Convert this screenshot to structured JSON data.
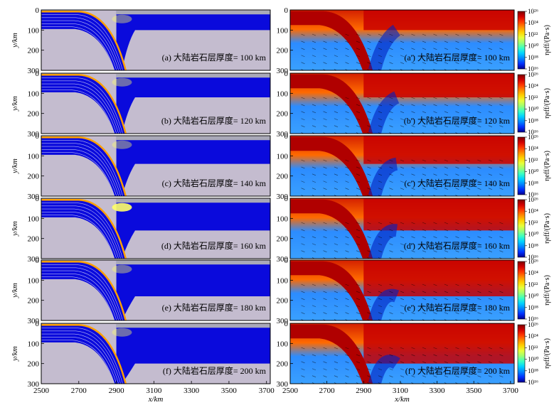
{
  "figure": {
    "colors": {
      "mantle": "#0a0adc",
      "background": "#c4bccf",
      "crust": "#ffa000",
      "highlight": "#ffff66"
    }
  },
  "chart_data": [
    {
      "type": "heatmap",
      "panel": "a",
      "field": "composition",
      "label": "(a) 大陆岩石层厚度= 100 km",
      "thickness_km": 100,
      "xlabel": "",
      "ylabel": "y/km",
      "xlim": [
        2500,
        3720
      ],
      "ylim": [
        300,
        0
      ],
      "yticks": [
        "0",
        "100",
        "200",
        "300"
      ],
      "xticks": []
    },
    {
      "type": "heatmap",
      "panel": "b",
      "field": "composition",
      "label": "(b) 大陆岩石层厚度= 120 km",
      "thickness_km": 120,
      "xlabel": "",
      "ylabel": "y/km",
      "xlim": [
        2500,
        3720
      ],
      "ylim": [
        300,
        0
      ],
      "yticks": [
        "0",
        "100",
        "200",
        "300"
      ],
      "xticks": []
    },
    {
      "type": "heatmap",
      "panel": "c",
      "field": "composition",
      "label": "(c) 大陆岩石层厚度= 140 km",
      "thickness_km": 140,
      "xlabel": "",
      "ylabel": "y/km",
      "xlim": [
        2500,
        3720
      ],
      "ylim": [
        300,
        0
      ],
      "yticks": [
        "0",
        "100",
        "200",
        "300"
      ],
      "xticks": []
    },
    {
      "type": "heatmap",
      "panel": "d",
      "field": "composition",
      "label": "(d) 大陆岩石层厚度= 160 km",
      "thickness_km": 160,
      "xlabel": "",
      "ylabel": "y/km",
      "xlim": [
        2500,
        3720
      ],
      "ylim": [
        300,
        0
      ],
      "yticks": [
        "0",
        "100",
        "200",
        "300"
      ],
      "xticks": []
    },
    {
      "type": "heatmap",
      "panel": "e",
      "field": "composition",
      "label": "(e) 大陆岩石层厚度= 180 km",
      "thickness_km": 180,
      "xlabel": "",
      "ylabel": "y/km",
      "xlim": [
        2500,
        3720
      ],
      "ylim": [
        300,
        0
      ],
      "yticks": [
        "0",
        "100",
        "200",
        "300"
      ],
      "xticks": []
    },
    {
      "type": "heatmap",
      "panel": "f",
      "field": "composition",
      "label": "(f) 大陆岩石层厚度= 200 km",
      "thickness_km": 200,
      "xlabel": "x/km",
      "ylabel": "y/km",
      "xlim": [
        2500,
        3720
      ],
      "ylim": [
        300,
        0
      ],
      "yticks": [
        "0",
        "100",
        "200",
        "300"
      ],
      "xticks": [
        "2500",
        "2700",
        "2900",
        "3100",
        "3300",
        "3500",
        "3700"
      ]
    },
    {
      "type": "heatmap",
      "panel": "a'",
      "field": "viscosity",
      "label": "(a') 大陆岩石层厚度= 100 km",
      "thickness_km": 100,
      "xlabel": "",
      "ylabel": "",
      "xlim": [
        2500,
        3720
      ],
      "ylim": [
        300,
        0
      ],
      "yticks": [
        "0",
        "100",
        "200",
        "300"
      ],
      "xticks": []
    },
    {
      "type": "heatmap",
      "panel": "b'",
      "field": "viscosity",
      "label": "(b') 大陆岩石层厚度= 120 km",
      "thickness_km": 120,
      "xlabel": "",
      "ylabel": "",
      "xlim": [
        2500,
        3720
      ],
      "ylim": [
        300,
        0
      ],
      "yticks": [
        "0",
        "100",
        "200",
        "300"
      ],
      "xticks": []
    },
    {
      "type": "heatmap",
      "panel": "c'",
      "field": "viscosity",
      "label": "(c') 大陆岩石层厚度= 140 km",
      "thickness_km": 140,
      "xlabel": "",
      "ylabel": "",
      "xlim": [
        2500,
        3720
      ],
      "ylim": [
        300,
        0
      ],
      "yticks": [
        "0",
        "100",
        "200",
        "300"
      ],
      "xticks": []
    },
    {
      "type": "heatmap",
      "panel": "d'",
      "field": "viscosity",
      "label": "(d') 大陆岩石层厚度= 160 km",
      "thickness_km": 160,
      "xlabel": "",
      "ylabel": "",
      "xlim": [
        2500,
        3720
      ],
      "ylim": [
        300,
        0
      ],
      "yticks": [
        "0",
        "100",
        "200",
        "300"
      ],
      "xticks": []
    },
    {
      "type": "heatmap",
      "panel": "e'",
      "field": "viscosity",
      "label": "(e') 大陆岩石层厚度= 180 km",
      "thickness_km": 180,
      "xlabel": "",
      "ylabel": "",
      "xlim": [
        2500,
        3720
      ],
      "ylim": [
        300,
        0
      ],
      "yticks": [
        "0",
        "100",
        "200",
        "300"
      ],
      "xticks": []
    },
    {
      "type": "heatmap",
      "panel": "f'",
      "field": "viscosity",
      "label": "(f') 大陆岩石层厚度= 200 km",
      "thickness_km": 200,
      "xlabel": "x/km",
      "ylabel": "",
      "xlim": [
        2500,
        3720
      ],
      "ylim": [
        300,
        0
      ],
      "yticks": [
        "0",
        "100",
        "200",
        "300"
      ],
      "xticks": [
        "2500",
        "2700",
        "2900",
        "3100",
        "3300",
        "3500",
        "3700"
      ]
    }
  ],
  "colorbar": {
    "title": "ηeff/(Pa·s)",
    "ticks": [
      "10²⁶",
      "10²⁴",
      "10²²",
      "10²⁰",
      "10¹⁸",
      "10¹⁶"
    ],
    "colors": [
      "#7f0000",
      "#d40000",
      "#ff3a00",
      "#ff8c00",
      "#ffd200",
      "#e6ff3a",
      "#9cff73",
      "#3affc2",
      "#00d2ff",
      "#0086ff",
      "#0030ff",
      "#00008f"
    ]
  }
}
